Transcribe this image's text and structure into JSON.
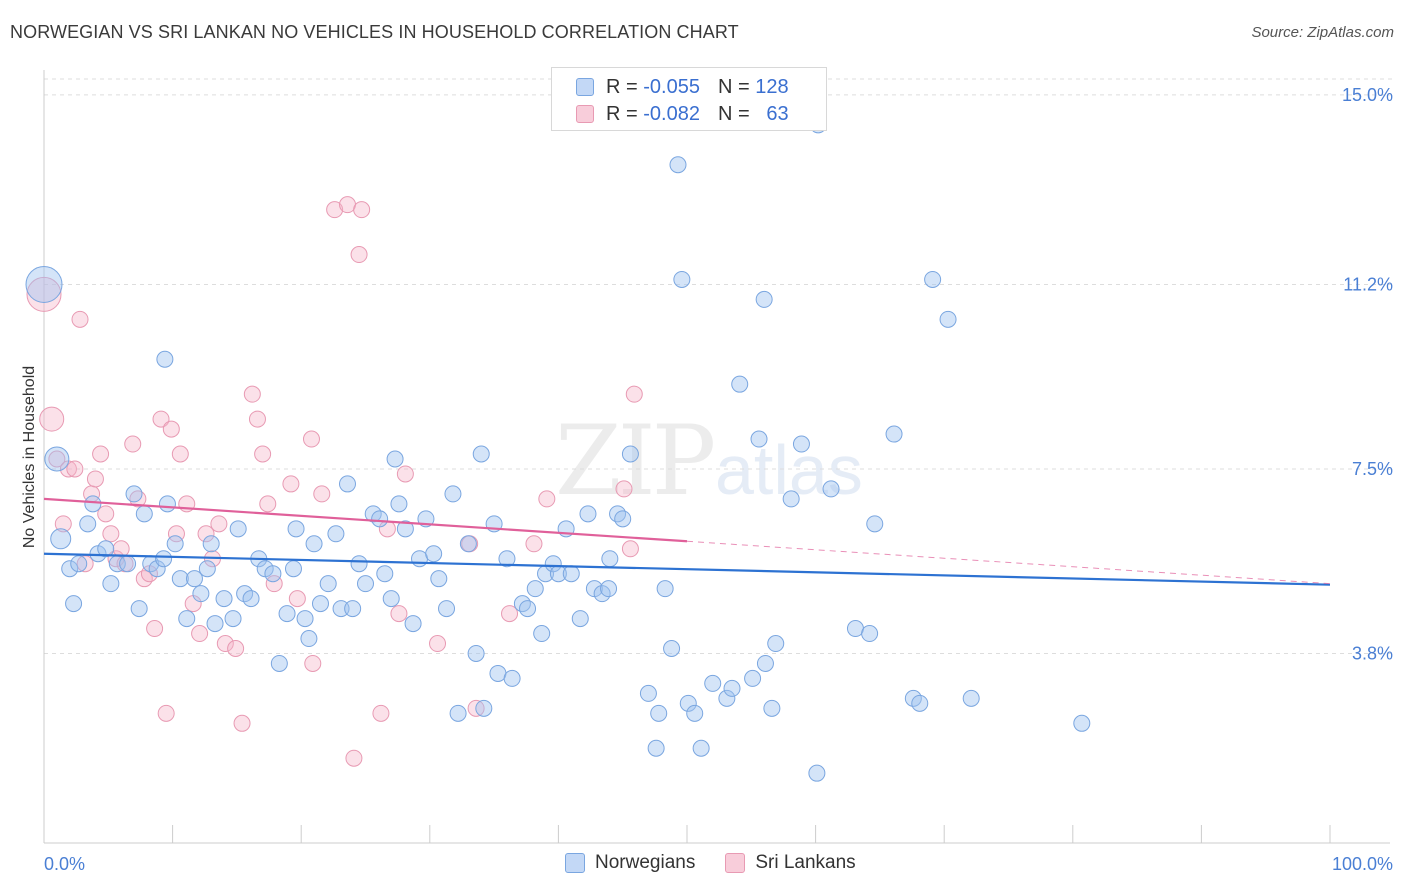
{
  "header": {
    "title": "NORWEGIAN VS SRI LANKAN NO VEHICLES IN HOUSEHOLD CORRELATION CHART",
    "source": "Source: ZipAtlas.com"
  },
  "watermark": {
    "zip": "ZIP",
    "atlas": "atlas"
  },
  "legend": {
    "rows": [
      {
        "r_label": "R =",
        "r_value": "-0.055",
        "n_label": "N =",
        "n_value": "128",
        "color": "#a9c8f2"
      },
      {
        "r_label": "R =",
        "r_value": "-0.082",
        "n_label": "N =",
        "n_value": "63",
        "color": "#f5b8cb"
      }
    ]
  },
  "bottom_legend": {
    "items": [
      {
        "label": "Norwegians",
        "color": "#a9c8f2"
      },
      {
        "label": "Sri Lankans",
        "color": "#f5b8cb"
      }
    ]
  },
  "colors": {
    "blue_fill": "rgba(160,195,240,0.45)",
    "blue_stroke": "#7aa6e0",
    "blue_line": "#2d72d2",
    "pink_fill": "rgba(245,180,200,0.40)",
    "pink_stroke": "#e89ab3",
    "pink_line": "#e0609a",
    "grid": "#dddddd",
    "axis_text": "#4a7fd4"
  },
  "chart_data": {
    "type": "scatter",
    "title": "NORWEGIAN VS SRI LANKAN NO VEHICLES IN HOUSEHOLD CORRELATION CHART",
    "xlabel": "",
    "ylabel": "No Vehicles in Household",
    "xlim": [
      0,
      100
    ],
    "ylim": [
      0,
      15.5
    ],
    "x_tick_labels": [
      "0.0%",
      "100.0%"
    ],
    "y_ticks": [
      3.8,
      7.5,
      11.2,
      15.0
    ],
    "y_tick_labels": [
      "3.8%",
      "7.5%",
      "11.2%",
      "15.0%"
    ],
    "trend_lines": [
      {
        "series": "Norwegians",
        "x": [
          0,
          100
        ],
        "y": [
          5.8,
          5.18
        ],
        "dashed_after": null
      },
      {
        "series": "Sri Lankans",
        "x": [
          0,
          50
        ],
        "y": [
          6.9,
          6.05
        ],
        "dashed_to": [
          100,
          5.2
        ]
      }
    ],
    "series": [
      {
        "name": "Norwegians",
        "points": [
          [
            0,
            11.2
          ],
          [
            1,
            7.7
          ],
          [
            1.3,
            6.1
          ],
          [
            2,
            5.5
          ],
          [
            2.3,
            4.8
          ],
          [
            2.7,
            5.6
          ],
          [
            3.4,
            6.4
          ],
          [
            3.8,
            6.8
          ],
          [
            4.2,
            5.8
          ],
          [
            4.8,
            5.9
          ],
          [
            5.2,
            5.2
          ],
          [
            5.7,
            5.6
          ],
          [
            6.5,
            5.6
          ],
          [
            7,
            7.0
          ],
          [
            7.4,
            4.7
          ],
          [
            7.8,
            6.6
          ],
          [
            8.3,
            5.6
          ],
          [
            8.8,
            5.5
          ],
          [
            9.3,
            5.7
          ],
          [
            9.6,
            6.8
          ],
          [
            9.4,
            9.7
          ],
          [
            10.2,
            6.0
          ],
          [
            10.6,
            5.3
          ],
          [
            11.1,
            4.5
          ],
          [
            11.7,
            5.3
          ],
          [
            12.2,
            5.0
          ],
          [
            12.7,
            5.5
          ],
          [
            13,
            6.0
          ],
          [
            13.3,
            4.4
          ],
          [
            14,
            4.9
          ],
          [
            14.7,
            4.5
          ],
          [
            15.1,
            6.3
          ],
          [
            15.6,
            5.0
          ],
          [
            16.1,
            4.9
          ],
          [
            16.7,
            5.7
          ],
          [
            17.2,
            5.5
          ],
          [
            17.8,
            5.4
          ],
          [
            18.3,
            3.6
          ],
          [
            18.9,
            4.6
          ],
          [
            19.4,
            5.5
          ],
          [
            19.6,
            6.3
          ],
          [
            20.3,
            4.5
          ],
          [
            20.6,
            4.1
          ],
          [
            21,
            6.0
          ],
          [
            21.5,
            4.8
          ],
          [
            22.1,
            5.2
          ],
          [
            22.7,
            6.2
          ],
          [
            23.1,
            4.7
          ],
          [
            23.6,
            7.2
          ],
          [
            24,
            4.7
          ],
          [
            24.5,
            5.6
          ],
          [
            25,
            5.2
          ],
          [
            25.6,
            6.6
          ],
          [
            26.1,
            6.5
          ],
          [
            26.5,
            5.4
          ],
          [
            27,
            4.9
          ],
          [
            27.3,
            7.7
          ],
          [
            27.6,
            6.8
          ],
          [
            28.1,
            6.3
          ],
          [
            28.7,
            4.4
          ],
          [
            29.2,
            5.7
          ],
          [
            29.7,
            6.5
          ],
          [
            30.3,
            5.8
          ],
          [
            30.7,
            5.3
          ],
          [
            31.3,
            4.7
          ],
          [
            31.8,
            7.0
          ],
          [
            32.2,
            2.6
          ],
          [
            33,
            6.0
          ],
          [
            33.6,
            3.8
          ],
          [
            34,
            7.8
          ],
          [
            34.2,
            2.7
          ],
          [
            35,
            6.4
          ],
          [
            35.3,
            3.4
          ],
          [
            36,
            5.7
          ],
          [
            36.4,
            3.3
          ],
          [
            37.2,
            4.8
          ],
          [
            37.6,
            4.7
          ],
          [
            38.2,
            5.1
          ],
          [
            38.7,
            4.2
          ],
          [
            39,
            5.4
          ],
          [
            39.6,
            5.6
          ],
          [
            40,
            5.4
          ],
          [
            40.6,
            6.3
          ],
          [
            41,
            5.4
          ],
          [
            41.7,
            4.5
          ],
          [
            42.3,
            6.6
          ],
          [
            42.8,
            5.1
          ],
          [
            43.4,
            5.0
          ],
          [
            43.9,
            5.1
          ],
          [
            44,
            5.7
          ],
          [
            44.6,
            6.6
          ],
          [
            45,
            6.5
          ],
          [
            45.6,
            7.8
          ],
          [
            47,
            3.0
          ],
          [
            47.6,
            1.9
          ],
          [
            47.8,
            2.6
          ],
          [
            48.3,
            5.1
          ],
          [
            48.8,
            3.9
          ],
          [
            49.3,
            13.6
          ],
          [
            49.6,
            11.3
          ],
          [
            50.1,
            2.8
          ],
          [
            50.6,
            2.6
          ],
          [
            51.1,
            1.9
          ],
          [
            52,
            3.2
          ],
          [
            53.1,
            2.9
          ],
          [
            53.5,
            3.1
          ],
          [
            54.1,
            9.2
          ],
          [
            55.1,
            3.3
          ],
          [
            55.6,
            8.1
          ],
          [
            56,
            10.9
          ],
          [
            56.6,
            2.7
          ],
          [
            56.1,
            3.6
          ],
          [
            56.9,
            4.0
          ],
          [
            58.1,
            6.9
          ],
          [
            58.9,
            8.0
          ],
          [
            60.1,
            1.4
          ],
          [
            60.2,
            14.4
          ],
          [
            61.2,
            7.1
          ],
          [
            63.1,
            4.3
          ],
          [
            64.2,
            4.2
          ],
          [
            64.6,
            6.4
          ],
          [
            66.1,
            8.2
          ],
          [
            67.6,
            2.9
          ],
          [
            68.1,
            2.8
          ],
          [
            69.1,
            11.3
          ],
          [
            70.3,
            10.5
          ],
          [
            72.1,
            2.9
          ],
          [
            80.7,
            2.4
          ]
        ]
      },
      {
        "name": "Sri Lankans",
        "points": [
          [
            0,
            11.0
          ],
          [
            0.6,
            8.5
          ],
          [
            1,
            7.7
          ],
          [
            1.5,
            6.4
          ],
          [
            1.9,
            7.5
          ],
          [
            2.4,
            7.5
          ],
          [
            2.8,
            10.5
          ],
          [
            3.2,
            5.6
          ],
          [
            3.7,
            7.0
          ],
          [
            4,
            7.3
          ],
          [
            4.4,
            7.8
          ],
          [
            4.8,
            6.6
          ],
          [
            5.2,
            6.2
          ],
          [
            5.6,
            5.7
          ],
          [
            6,
            5.9
          ],
          [
            6.3,
            5.6
          ],
          [
            6.9,
            8.0
          ],
          [
            7.3,
            6.9
          ],
          [
            7.8,
            5.3
          ],
          [
            8.2,
            5.4
          ],
          [
            8.6,
            4.3
          ],
          [
            9.1,
            8.5
          ],
          [
            9.5,
            2.6
          ],
          [
            9.9,
            8.3
          ],
          [
            10.3,
            6.2
          ],
          [
            10.6,
            7.8
          ],
          [
            11.1,
            6.8
          ],
          [
            11.6,
            4.8
          ],
          [
            12.1,
            4.2
          ],
          [
            12.6,
            6.2
          ],
          [
            13.1,
            5.7
          ],
          [
            13.6,
            6.4
          ],
          [
            14.1,
            4.0
          ],
          [
            14.9,
            3.9
          ],
          [
            15.4,
            2.4
          ],
          [
            16.2,
            9.0
          ],
          [
            16.6,
            8.5
          ],
          [
            17,
            7.8
          ],
          [
            17.4,
            6.8
          ],
          [
            17.9,
            5.2
          ],
          [
            19.2,
            7.2
          ],
          [
            19.7,
            4.9
          ],
          [
            20.8,
            8.1
          ],
          [
            20.9,
            3.6
          ],
          [
            21.6,
            7.0
          ],
          [
            22.6,
            12.7
          ],
          [
            23.6,
            12.8
          ],
          [
            24.1,
            1.7
          ],
          [
            24.5,
            11.8
          ],
          [
            24.7,
            12.7
          ],
          [
            26.2,
            2.6
          ],
          [
            26.7,
            6.3
          ],
          [
            27.6,
            4.6
          ],
          [
            28.1,
            7.4
          ],
          [
            30.6,
            4.0
          ],
          [
            33.1,
            6.0
          ],
          [
            33.6,
            2.7
          ],
          [
            36.2,
            4.6
          ],
          [
            38.1,
            6.0
          ],
          [
            39.1,
            6.9
          ],
          [
            45.1,
            7.1
          ],
          [
            45.6,
            5.9
          ],
          [
            45.9,
            9.0
          ]
        ]
      }
    ]
  }
}
